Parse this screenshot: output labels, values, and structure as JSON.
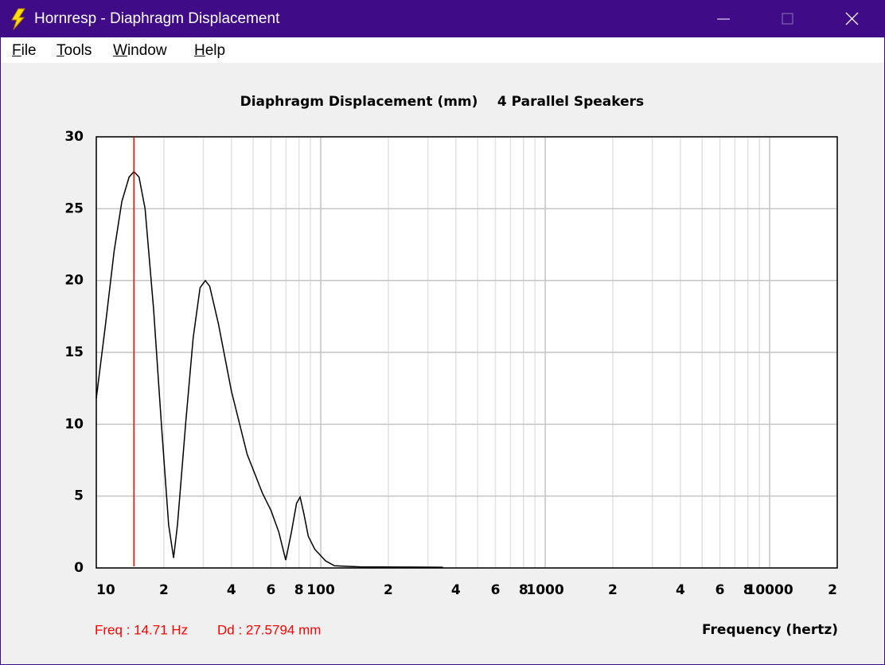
{
  "window": {
    "title": "Hornresp - Diaphragm Displacement"
  },
  "menu": [
    "File",
    "Tools",
    "Window",
    "Help"
  ],
  "chart_data": {
    "type": "line",
    "title": "Diaphragm Displacement (mm)",
    "subtitle": "4 Parallel Speakers",
    "x_label": "Frequency (hertz)",
    "log_x": true,
    "grid": true,
    "color": "#000000",
    "x": [
      10,
      11,
      12,
      13,
      14,
      14.71,
      15.5,
      16.5,
      18,
      19.5,
      21,
      22.1,
      23,
      25,
      27,
      29,
      30.6,
      32,
      35,
      40,
      47,
      55,
      60,
      65,
      69.8,
      74,
      78,
      80.9,
      84,
      88,
      94,
      105,
      115,
      150,
      250,
      350
    ],
    "values": [
      11.8,
      17,
      22,
      25.5,
      27.2,
      27.58,
      27.2,
      25,
      18,
      10,
      3,
      0.7,
      3,
      10,
      16,
      19.5,
      20,
      19.6,
      17,
      12.3,
      7.9,
      5.2,
      4,
      2.5,
      0.55,
      2.5,
      4.5,
      4.93,
      3.8,
      2.2,
      1.3,
      0.5,
      0.15,
      0.08,
      0.06,
      0.05
    ],
    "xlim": [
      10,
      20000
    ],
    "ylim": [
      0,
      30
    ],
    "yticks": [
      0,
      5,
      10,
      15,
      20,
      25,
      30
    ],
    "xticks": [
      10,
      {
        "value": 20,
        "label": "2"
      },
      {
        "value": 40,
        "label": "4"
      },
      {
        "value": 60,
        "label": "6"
      },
      {
        "value": 80,
        "label": "8"
      },
      100,
      {
        "value": 200,
        "label": "2"
      },
      {
        "value": 400,
        "label": "4"
      },
      {
        "value": 600,
        "label": "6"
      },
      {
        "value": 800,
        "label": "8"
      },
      1000,
      {
        "value": 2000,
        "label": "2"
      },
      {
        "value": 4000,
        "label": "4"
      },
      {
        "value": 6000,
        "label": "6"
      },
      {
        "value": 8000,
        "label": "8"
      },
      10000,
      {
        "value": 20000,
        "label": "2"
      }
    ],
    "x_minor_grid": [
      30,
      50,
      70,
      90,
      300,
      500,
      700,
      900,
      3000,
      5000,
      7000,
      9000
    ],
    "cursor": {
      "x": 14.71,
      "color": "#ff0000",
      "labels": [
        "Freq : 14.71 Hz",
        "Dd : 27.5794 mm"
      ]
    }
  }
}
